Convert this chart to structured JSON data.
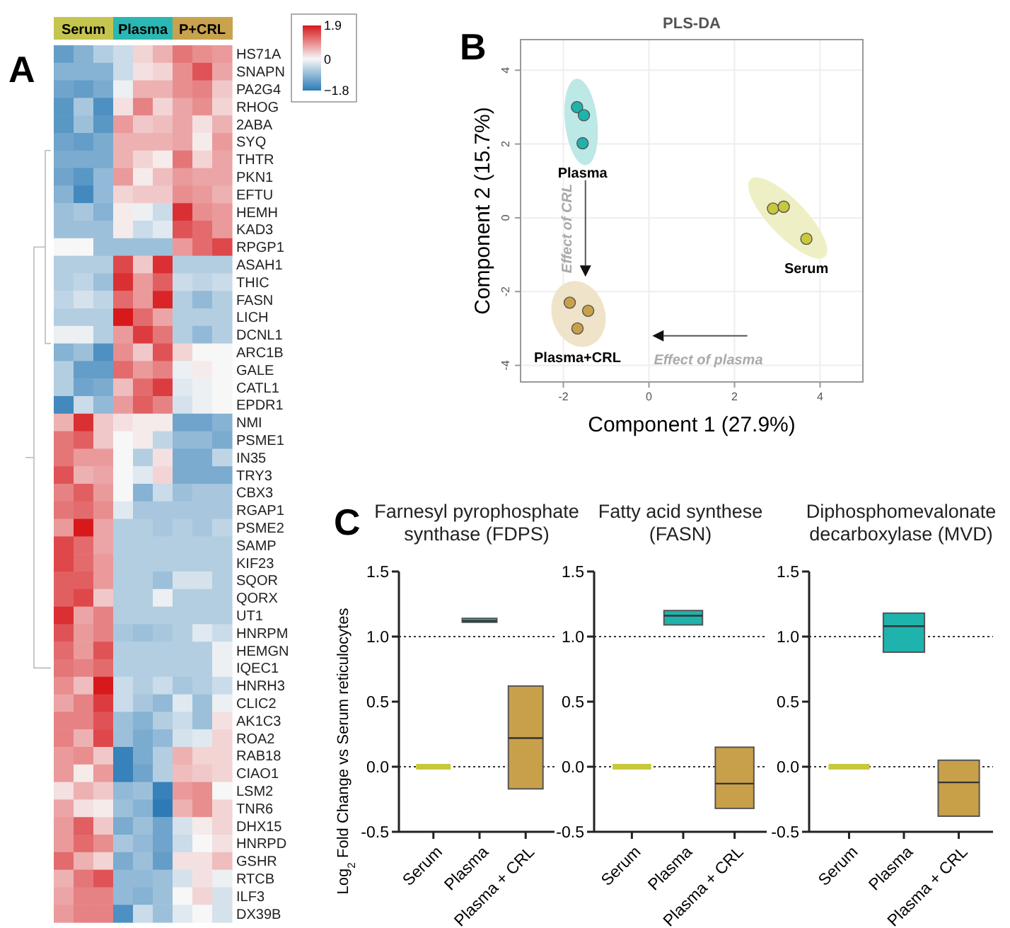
{
  "chart_data": [
    {
      "type": "heatmap",
      "annotations": [
        "A"
      ],
      "categories": [
        null,
        "Serum",
        null,
        null,
        "Plasma",
        null,
        null,
        "P+CRL",
        null
      ],
      "colors": [
        "#c5c44e",
        "#c5c44e",
        "#c5c44e",
        "#2bb7b3",
        "#2bb7b3",
        "#2bb7b3",
        "#c9a24e",
        "#c9a24e",
        "#c9a24e"
      ],
      "y_categories": [
        "HS71A",
        "SNAPN",
        "PA2G4",
        "RHOG",
        "2ABA",
        "SYQ",
        "THTR",
        "PKN1",
        "EFTU",
        "HEMH",
        "KAD3",
        "RPGP1",
        "ASAH1",
        "THIC",
        "FASN",
        "LICH",
        "DCNL1",
        "ARC1B",
        "GALE",
        "CATL1",
        "EPDR1",
        "NMI",
        "PSME1",
        "IN35",
        "TRY3",
        "CBX3",
        "RGAP1",
        "PSME2",
        "SAMP",
        "KIF23",
        "SQOR",
        "QORX",
        "UT1",
        "HNRPM",
        "HEMGN",
        "IQEC1",
        "HNRH3",
        "CLIC2",
        "AK1C3",
        "ROA2",
        "RAB18",
        "CIAO1",
        "LSM2",
        "TNR6",
        "DHX15",
        "HNRPD",
        "GSHR",
        "RTCB",
        "ILF3",
        "DX39B"
      ],
      "cells": [
        [
          -1.3,
          -1.0,
          -0.6,
          -0.4,
          0.3,
          0.6,
          1.1,
          0.9,
          0.8
        ],
        [
          -1.0,
          -1.0,
          -1.0,
          -0.4,
          0.2,
          0.3,
          0.9,
          1.4,
          0.7
        ],
        [
          -1.2,
          -1.3,
          -1.1,
          -0.1,
          0.6,
          0.6,
          0.9,
          1.0,
          0.4
        ],
        [
          -1.4,
          -0.7,
          -1.5,
          0.2,
          1.0,
          0.3,
          0.7,
          0.9,
          0.3
        ],
        [
          -1.4,
          -0.8,
          -1.4,
          0.8,
          0.4,
          0.5,
          0.7,
          0.2,
          0.6
        ],
        [
          -1.2,
          -1.3,
          -1.1,
          0.6,
          0.6,
          0.6,
          0.7,
          0.1,
          0.8
        ],
        [
          -1.1,
          -1.1,
          -1.1,
          0.6,
          0.3,
          0.1,
          1.1,
          0.3,
          0.7
        ],
        [
          -1.2,
          -1.4,
          -0.9,
          0.8,
          0.1,
          0.5,
          0.8,
          0.7,
          0.7
        ],
        [
          -1.0,
          -1.6,
          -0.9,
          0.3,
          0.4,
          0.4,
          0.9,
          0.8,
          0.6
        ],
        [
          -0.8,
          -0.7,
          -1.0,
          0.1,
          -0.1,
          -0.4,
          1.7,
          0.9,
          0.8
        ],
        [
          -0.8,
          -0.8,
          -0.8,
          0.1,
          -0.4,
          -0.2,
          1.4,
          1.2,
          0.8
        ],
        [
          0,
          0,
          -0.8,
          -0.8,
          -0.8,
          -0.8,
          0.8,
          1.2,
          1.5
        ],
        [
          -0.6,
          -0.6,
          -0.6,
          1.5,
          0.4,
          1.7,
          -0.6,
          -0.6,
          -0.6
        ],
        [
          -0.6,
          -0.5,
          -0.8,
          1.7,
          0.8,
          1.3,
          -0.4,
          -0.5,
          -0.4
        ],
        [
          -0.5,
          -0.3,
          -0.5,
          1.2,
          0.8,
          1.8,
          -0.6,
          -0.9,
          -0.6
        ],
        [
          -0.6,
          -0.6,
          -0.6,
          1.9,
          1.2,
          0.7,
          -0.6,
          -0.6,
          -0.6
        ],
        [
          -0.1,
          -0.1,
          -0.6,
          0.8,
          1.6,
          1.1,
          -0.6,
          -0.9,
          -0.6
        ],
        [
          -1.0,
          -0.8,
          -1.5,
          0.9,
          0.4,
          1.4,
          0.3,
          0,
          0
        ],
        [
          -0.6,
          -1.3,
          -1.3,
          1.2,
          0.8,
          1.0,
          -0.1,
          0.1,
          0
        ],
        [
          -0.6,
          -1.2,
          -1.1,
          0.5,
          1.2,
          1.6,
          -0.2,
          -0.1,
          0
        ],
        [
          -1.6,
          -0.4,
          -0.9,
          0.8,
          1.3,
          1.0,
          -0.3,
          -0.1,
          0
        ],
        [
          0.6,
          1.7,
          0.4,
          0.2,
          0.1,
          0.1,
          -1.2,
          -1.2,
          -1.0
        ],
        [
          1.1,
          1.3,
          0.4,
          0,
          0.1,
          -0.5,
          -0.9,
          -0.9,
          -1.1
        ],
        [
          1.1,
          0.8,
          0.8,
          0,
          -0.6,
          0.2,
          -1.1,
          -1.1,
          -0.5
        ],
        [
          1.4,
          0.6,
          0.7,
          0,
          -0.2,
          0.3,
          -1.1,
          -1.1,
          -1.1
        ],
        [
          1.0,
          1.3,
          0.8,
          0,
          -1.0,
          -0.4,
          -0.8,
          -0.7,
          -0.7
        ],
        [
          1.1,
          1.2,
          0.9,
          -0.2,
          -0.7,
          -0.7,
          -0.7,
          -0.7,
          -0.7
        ],
        [
          0.8,
          1.9,
          0.7,
          -0.6,
          -0.6,
          -0.7,
          -0.6,
          -0.7,
          -0.5
        ],
        [
          1.5,
          1.2,
          0.7,
          -0.6,
          -0.6,
          -0.6,
          -0.6,
          -0.6,
          -0.6
        ],
        [
          1.5,
          1.2,
          0.8,
          -0.6,
          -0.6,
          -0.6,
          -0.6,
          -0.6,
          -0.6
        ],
        [
          1.3,
          1.3,
          0.8,
          -0.6,
          -0.6,
          -0.8,
          -0.3,
          -0.3,
          -0.6
        ],
        [
          1.3,
          1.5,
          0.4,
          -0.6,
          -0.6,
          -0.1,
          -0.6,
          -0.6,
          -0.6
        ],
        [
          1.7,
          0.7,
          1.0,
          -0.6,
          -0.6,
          -0.6,
          -0.6,
          -0.6,
          -0.6
        ],
        [
          1.4,
          0.8,
          1.0,
          -0.7,
          -0.8,
          -0.7,
          -0.6,
          -0.2,
          -0.4
        ],
        [
          1.2,
          0.8,
          1.4,
          -0.6,
          -0.6,
          -0.6,
          -0.6,
          -0.6,
          -0.1
        ],
        [
          1.1,
          1.0,
          1.2,
          -0.6,
          -0.6,
          -0.6,
          -0.6,
          -0.6,
          -0.1
        ],
        [
          0.9,
          0.5,
          1.9,
          -0.4,
          -0.6,
          -0.4,
          -0.7,
          -0.6,
          -0.4
        ],
        [
          0.7,
          1.0,
          1.6,
          -0.4,
          -0.7,
          -0.9,
          -0.2,
          -0.8,
          -0.1
        ],
        [
          1.0,
          1.0,
          1.4,
          -0.8,
          -1.0,
          -0.6,
          -0.4,
          -0.8,
          0.2
        ],
        [
          1.0,
          0.6,
          1.5,
          -0.8,
          -1.1,
          -0.9,
          -0.3,
          -0.2,
          0.3
        ],
        [
          0.8,
          0.9,
          0.4,
          -1.7,
          -1.1,
          -0.6,
          0.6,
          0.3,
          0.3
        ],
        [
          0.8,
          0.1,
          0.8,
          -1.7,
          -1.2,
          -0.6,
          0.5,
          0.4,
          0.3
        ],
        [
          0.2,
          0.6,
          0.4,
          -0.9,
          -0.8,
          -1.7,
          0.8,
          0.9,
          0
        ],
        [
          0.7,
          0.2,
          0.1,
          -0.8,
          -1.0,
          -1.8,
          0.6,
          0.9,
          0.3
        ],
        [
          0.8,
          1.3,
          0.4,
          -1.1,
          -0.8,
          -1.2,
          -0.3,
          0.1,
          0.3
        ],
        [
          0.8,
          1.2,
          0.9,
          -0.7,
          -0.9,
          -1.2,
          -0.4,
          0,
          0.2
        ],
        [
          1.2,
          0.6,
          0.3,
          -1.1,
          -0.8,
          -1.3,
          0.2,
          0.2,
          0.5
        ],
        [
          0.6,
          1.1,
          1.4,
          -0.9,
          -0.9,
          -0.8,
          -0.3,
          0.2,
          -0.1
        ],
        [
          0.7,
          1.0,
          1.0,
          -0.9,
          -1.0,
          -0.8,
          0,
          0.3,
          -0.3
        ],
        [
          0.8,
          1.0,
          1.0,
          -1.5,
          -0.4,
          -0.8,
          -0.2,
          0,
          -0.3
        ]
      ],
      "clim": [
        -1.8,
        1.9
      ],
      "cticks": [
        {
          "value": -1.8,
          "label": "−1.8"
        },
        0,
        1.9
      ]
    },
    {
      "type": "scatter",
      "title": "PLS-DA",
      "xlabel": "Component 1 (27.9%)",
      "ylabel": "Component 2 (15.7%)",
      "annotations": [
        "B",
        "Effect of CRL",
        "Effect of plasma"
      ],
      "xlim": [
        -3,
        5
      ],
      "ylim": [
        -4.45,
        4.83
      ],
      "xticks": [
        -2,
        0,
        2,
        4
      ],
      "yticks": [
        -4,
        -2,
        0,
        2,
        4
      ],
      "grid": true,
      "marker": "circle",
      "series": [
        {
          "name": "Plasma",
          "color": "#1fb3ad",
          "x": [
            -1.68,
            -1.52,
            -1.55
          ],
          "values": [
            3.0,
            2.78,
            2.02
          ]
        },
        {
          "name": "Serum",
          "color": "#c8c83c",
          "x": [
            2.9,
            3.15,
            3.68
          ],
          "values": [
            0.25,
            0.3,
            -0.57
          ]
        },
        {
          "name": "Plasma+CRL",
          "color": "#c9a04a",
          "x": [
            -1.85,
            -1.42,
            -1.67
          ],
          "values": [
            -2.3,
            -2.52,
            -3.0
          ]
        }
      ]
    },
    {
      "type": "box",
      "title": "Farnesyl pyrophosphate synthase (FDPS)",
      "ylabel": "Log$_{2}$ Fold Change vs Serum reticulocytes",
      "annotations": [
        "C"
      ],
      "categories": [
        "Serum",
        "Plasma",
        "Plasma + CRL"
      ],
      "colors": [
        "#c8c83c",
        "#1fb3ad",
        "#c9a04a"
      ],
      "boxes": [
        {
          "low": 0,
          "q1": 0,
          "median": 0,
          "q3": 0,
          "high": 0
        },
        {
          "low": 1.11,
          "q1": 1.11,
          "median": 1.12,
          "q3": 1.14,
          "high": 1.14
        },
        {
          "low": -0.17,
          "q1": -0.17,
          "median": 0.22,
          "q3": 0.62,
          "high": 0.62
        }
      ],
      "ylim": [
        -0.5,
        1.5
      ],
      "yticks": [
        {
          "value": -0.5,
          "label": "-0.5"
        },
        {
          "value": 0,
          "label": "0.0"
        },
        {
          "value": 0.5,
          "label": "0.5"
        },
        {
          "value": 1,
          "label": "1.0"
        },
        {
          "value": 1.5,
          "label": "1.5"
        }
      ],
      "ref_lines": [
        {
          "axis": "y",
          "value": 0,
          "color": "#333333",
          "line_style": "dotted"
        },
        {
          "axis": "y",
          "value": 1,
          "color": "#333333",
          "line_style": "dotted"
        }
      ]
    },
    {
      "type": "box",
      "title": "Fatty acid synthese (FASN)",
      "categories": [
        "Serum",
        "Plasma",
        "Plasma + CRL"
      ],
      "colors": [
        "#c8c83c",
        "#1fb3ad",
        "#c9a04a"
      ],
      "boxes": [
        {
          "low": 0,
          "q1": 0,
          "median": 0,
          "q3": 0,
          "high": 0
        },
        {
          "low": 1.09,
          "q1": 1.09,
          "median": 1.16,
          "q3": 1.2,
          "high": 1.2
        },
        {
          "low": -0.32,
          "q1": -0.32,
          "median": -0.13,
          "q3": 0.15,
          "high": 0.15
        }
      ],
      "ylim": [
        -0.5,
        1.5
      ],
      "yticks": [
        {
          "value": -0.5,
          "label": "-0.5"
        },
        {
          "value": 0,
          "label": "0.0"
        },
        {
          "value": 0.5,
          "label": "0.5"
        },
        {
          "value": 1,
          "label": "1.0"
        },
        {
          "value": 1.5,
          "label": "1.5"
        }
      ],
      "ref_lines": [
        {
          "axis": "y",
          "value": 0,
          "color": "#333333",
          "line_style": "dotted"
        },
        {
          "axis": "y",
          "value": 1,
          "color": "#333333",
          "line_style": "dotted"
        }
      ]
    },
    {
      "type": "box",
      "title": "Diphosphomevalonate decarboxylase (MVD)",
      "categories": [
        "Serum",
        "Plasma",
        "Plasma + CRL"
      ],
      "colors": [
        "#c8c83c",
        "#1fb3ad",
        "#c9a04a"
      ],
      "boxes": [
        {
          "low": 0,
          "q1": 0,
          "median": 0,
          "q3": 0,
          "high": 0
        },
        {
          "low": 0.88,
          "q1": 0.88,
          "median": 1.08,
          "q3": 1.18,
          "high": 1.18
        },
        {
          "low": -0.38,
          "q1": -0.38,
          "median": -0.12,
          "q3": 0.05,
          "high": 0.05
        }
      ],
      "ylim": [
        -0.5,
        1.5
      ],
      "yticks": [
        {
          "value": -0.5,
          "label": "-0.5"
        },
        {
          "value": 0,
          "label": "0.0"
        },
        {
          "value": 0.5,
          "label": "0.5"
        },
        {
          "value": 1,
          "label": "1.0"
        },
        {
          "value": 1.5,
          "label": "1.5"
        }
      ],
      "ref_lines": [
        {
          "axis": "y",
          "value": 0,
          "color": "#333333",
          "line_style": "dotted"
        },
        {
          "axis": "y",
          "value": 1,
          "color": "#333333",
          "line_style": "dotted"
        }
      ]
    }
  ]
}
